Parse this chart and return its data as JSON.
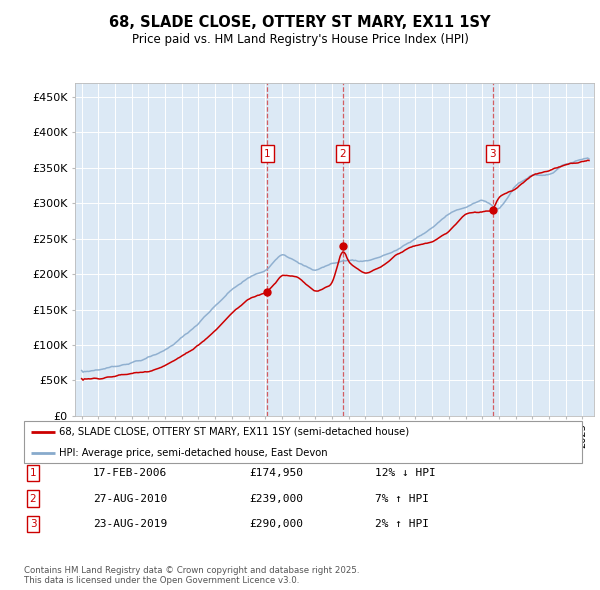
{
  "title": "68, SLADE CLOSE, OTTERY ST MARY, EX11 1SY",
  "subtitle": "Price paid vs. HM Land Registry's House Price Index (HPI)",
  "plot_bg_color": "#dce9f5",
  "ylim": [
    0,
    470000
  ],
  "yticks": [
    0,
    50000,
    100000,
    150000,
    200000,
    250000,
    300000,
    350000,
    400000,
    450000
  ],
  "ytick_labels": [
    "£0",
    "£50K",
    "£100K",
    "£150K",
    "£200K",
    "£250K",
    "£300K",
    "£350K",
    "£400K",
    "£450K"
  ],
  "sale_prices": [
    174950,
    239000,
    290000
  ],
  "vline_x": [
    2006.13,
    2010.65,
    2019.64
  ],
  "red_line_color": "#cc0000",
  "blue_line_color": "#88aacc",
  "legend_entries": [
    "68, SLADE CLOSE, OTTERY ST MARY, EX11 1SY (semi-detached house)",
    "HPI: Average price, semi-detached house, East Devon"
  ],
  "table_rows": [
    {
      "label": "1",
      "date": "17-FEB-2006",
      "price": "£174,950",
      "hpi": "12% ↓ HPI"
    },
    {
      "label": "2",
      "date": "27-AUG-2010",
      "price": "£239,000",
      "hpi": "7% ↑ HPI"
    },
    {
      "label": "3",
      "date": "23-AUG-2019",
      "price": "£290,000",
      "hpi": "2% ↑ HPI"
    }
  ],
  "footnote": "Contains HM Land Registry data © Crown copyright and database right 2025.\nThis data is licensed under the Open Government Licence v3.0.",
  "hpi_anchor_years": [
    1995,
    1996,
    1997,
    1998,
    1999,
    2000,
    2001,
    2002,
    2003,
    2004,
    2005,
    2006,
    2007,
    2008,
    2009,
    2010,
    2011,
    2012,
    2013,
    2014,
    2015,
    2016,
    2017,
    2018,
    2019,
    2020,
    2021,
    2022,
    2023,
    2024,
    2025.4
  ],
  "hpi_anchor_prices": [
    62000,
    65000,
    70000,
    75000,
    82000,
    93000,
    110000,
    130000,
    155000,
    178000,
    195000,
    205000,
    230000,
    215000,
    205000,
    215000,
    220000,
    218000,
    225000,
    235000,
    250000,
    265000,
    285000,
    295000,
    305000,
    290000,
    325000,
    340000,
    340000,
    355000,
    365000
  ],
  "red_anchor_years": [
    1995,
    1996,
    1997,
    1998,
    1999,
    2000,
    2001,
    2002,
    2003,
    2004,
    2005,
    2006.13,
    2006.5,
    2007,
    2008,
    2009,
    2010.0,
    2010.65,
    2011,
    2012,
    2013,
    2014,
    2015,
    2016,
    2017,
    2018,
    2019.64,
    2020,
    2021,
    2022,
    2023,
    2024,
    2025.4
  ],
  "red_anchor_prices": [
    52000,
    53000,
    56000,
    60000,
    63000,
    71000,
    84000,
    100000,
    120000,
    145000,
    165000,
    174950,
    185000,
    200000,
    195000,
    175000,
    185000,
    239000,
    215000,
    200000,
    210000,
    230000,
    240000,
    245000,
    260000,
    285000,
    290000,
    310000,
    320000,
    340000,
    345000,
    355000,
    360000
  ]
}
